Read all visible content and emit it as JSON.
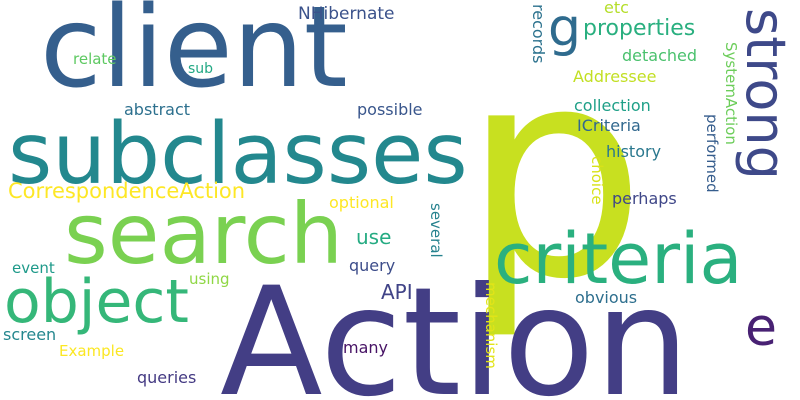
{
  "cloud": {
    "background": "#ffffff",
    "words": [
      {
        "text": "client",
        "color": "#355f8d"
      },
      {
        "text": "p",
        "color": "#c8e020"
      },
      {
        "text": "Action",
        "color": "#433e85"
      },
      {
        "text": "subclasses",
        "color": "#23888e"
      },
      {
        "text": "search",
        "color": "#7ad151"
      },
      {
        "text": "criteria",
        "color": "#2ab07f"
      },
      {
        "text": "object",
        "color": "#35b779"
      },
      {
        "text": "strong",
        "color": "#3e4989"
      },
      {
        "text": "g",
        "color": "#2f6b8e"
      },
      {
        "text": "e",
        "color": "#482173"
      },
      {
        "text": "properties",
        "color": "#29af7f"
      },
      {
        "text": "CorrespondenceAction",
        "color": "#fde725"
      },
      {
        "text": "NHibernate",
        "color": "#3b528b"
      },
      {
        "text": "etc",
        "color": "#b5de2b"
      },
      {
        "text": "records",
        "color": "#2c728e"
      },
      {
        "text": "detached",
        "color": "#4ac16d"
      },
      {
        "text": "Addressee",
        "color": "#c2df23"
      },
      {
        "text": "relate",
        "color": "#5ec962"
      },
      {
        "text": "sub",
        "color": "#22a884"
      },
      {
        "text": "abstract",
        "color": "#2d708e"
      },
      {
        "text": "possible",
        "color": "#39568c"
      },
      {
        "text": "collection",
        "color": "#1fa088"
      },
      {
        "text": "SystemAction",
        "color": "#6ccd5a"
      },
      {
        "text": "ICriteria",
        "color": "#31688e"
      },
      {
        "text": "history",
        "color": "#2a788e"
      },
      {
        "text": "performed",
        "color": "#365d8d"
      },
      {
        "text": "choice",
        "color": "#d8e219"
      },
      {
        "text": "perhaps",
        "color": "#3f4788"
      },
      {
        "text": "optional",
        "color": "#fde725"
      },
      {
        "text": "several",
        "color": "#26828e"
      },
      {
        "text": "use",
        "color": "#25ab82"
      },
      {
        "text": "event",
        "color": "#1f9a8a"
      },
      {
        "text": "using",
        "color": "#8fd744"
      },
      {
        "text": "query",
        "color": "#3d4d8a"
      },
      {
        "text": "API",
        "color": "#404387"
      },
      {
        "text": "mechanism",
        "color": "#e2e418"
      },
      {
        "text": "obvious",
        "color": "#2e6f8e"
      },
      {
        "text": "screen",
        "color": "#24878e"
      },
      {
        "text": "Example",
        "color": "#fbe723"
      },
      {
        "text": "many",
        "color": "#471365"
      },
      {
        "text": "queries",
        "color": "#443a83"
      }
    ]
  }
}
